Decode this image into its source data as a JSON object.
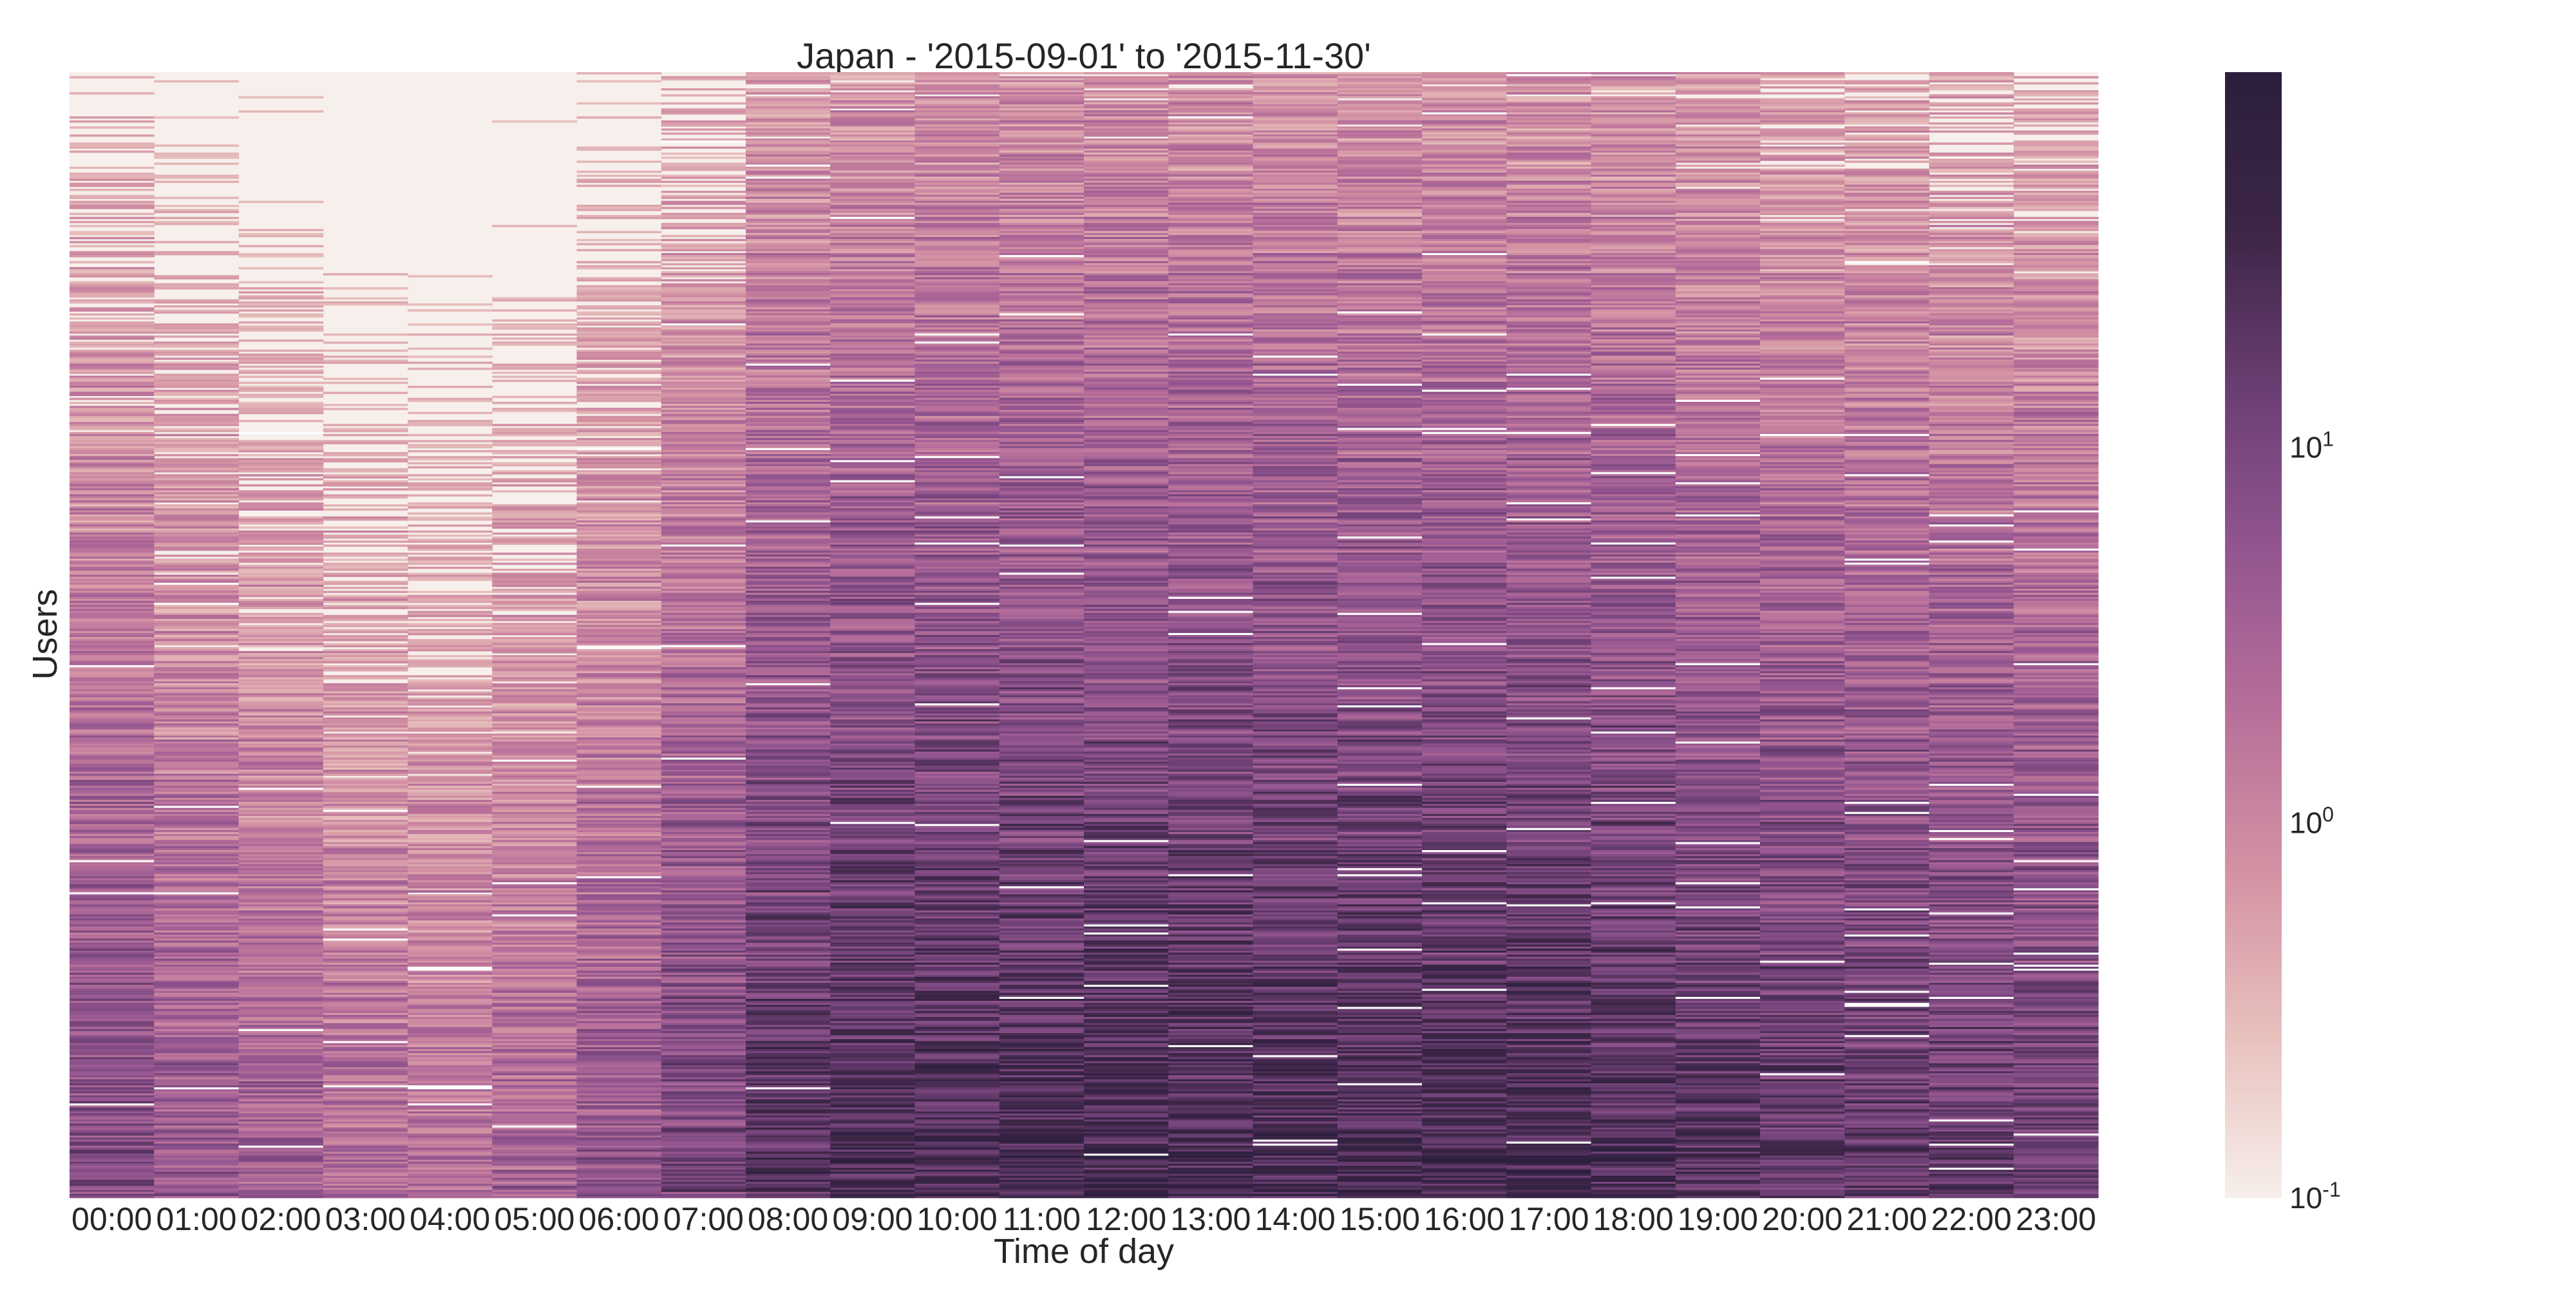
{
  "chart_data": {
    "type": "heatmap",
    "title": "Japan - '2015-09-01' to '2015-11-30'",
    "xlabel": "Time of day",
    "ylabel": "Users",
    "x_categories": [
      "00:00",
      "01:00",
      "02:00",
      "03:00",
      "04:00",
      "05:00",
      "06:00",
      "07:00",
      "08:00",
      "09:00",
      "10:00",
      "11:00",
      "12:00",
      "13:00",
      "14:00",
      "15:00",
      "16:00",
      "17:00",
      "18:00",
      "19:00",
      "20:00",
      "21:00",
      "22:00",
      "23:00"
    ],
    "y_axis": "users (rows, unlabeled), ordered from least active at top to most active at bottom",
    "color_scale": {
      "type": "log",
      "min": 0.1,
      "max": 100,
      "ticks": [
        {
          "value": 0.1,
          "base": "10",
          "exponent": "-1"
        },
        {
          "value": 1,
          "base": "10",
          "exponent": "0"
        },
        {
          "value": 10,
          "base": "10",
          "exponent": "1"
        }
      ],
      "colormap": [
        "#f7efeb",
        "#e8c1bd",
        "#d493a4",
        "#b8709a",
        "#945690",
        "#6c3f74",
        "#3d2647",
        "#2c1e3d"
      ]
    },
    "grid": false,
    "legend": "colorbar-right",
    "hour_activity_profile": [
      0.86,
      0.62,
      0.5,
      0.34,
      0.26,
      0.4,
      0.66,
      0.95,
      1.3,
      1.4,
      1.44,
      1.44,
      1.46,
      1.44,
      1.44,
      1.44,
      1.45,
      1.46,
      1.4,
      1.28,
      1.2,
      1.18,
      1.13,
      1.08
    ]
  }
}
